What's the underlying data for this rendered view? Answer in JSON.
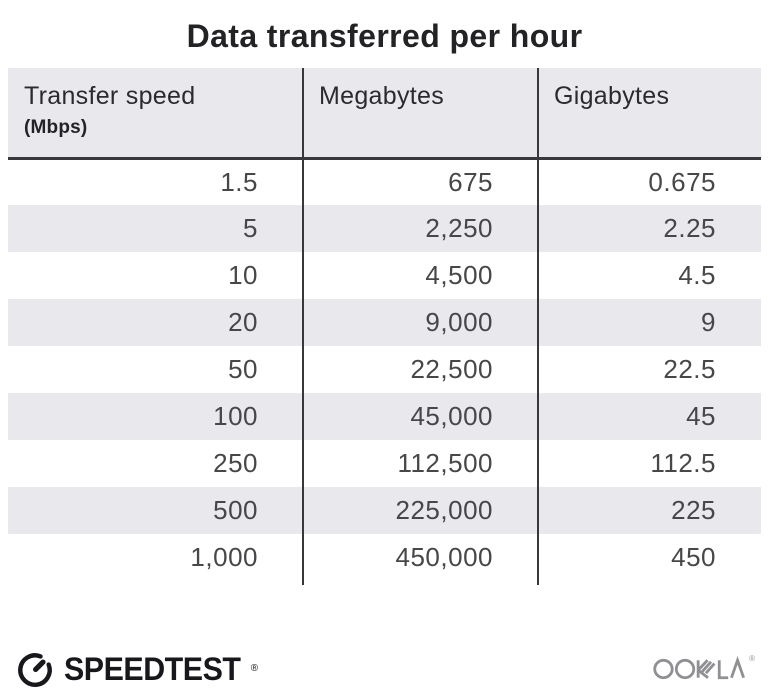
{
  "title": "Data transferred per hour",
  "table": {
    "columns": [
      {
        "label": "Transfer speed",
        "sublabel": "(Mbps)"
      },
      {
        "label": "Megabytes"
      },
      {
        "label": "Gigabytes"
      }
    ],
    "rows": [
      [
        "1.5",
        "675",
        "0.675"
      ],
      [
        "5",
        "2,250",
        "2.25"
      ],
      [
        "10",
        "4,500",
        "4.5"
      ],
      [
        "20",
        "9,000",
        "9"
      ],
      [
        "50",
        "22,500",
        "22.5"
      ],
      [
        "100",
        "45,000",
        "45"
      ],
      [
        "250",
        "112,500",
        "112.5"
      ],
      [
        "500",
        "225,000",
        "225"
      ],
      [
        "1,000",
        "450,000",
        "450"
      ]
    ]
  },
  "footer": {
    "speedtest_label": "SPEEDTEST",
    "speedtest_trademark": "®",
    "ookla_label": "OOKLA",
    "ookla_trademark": "®"
  },
  "colors": {
    "stripe_bg": "#e9e8ec",
    "header_bg": "#e9e8ec",
    "title_text": "#232225",
    "number_text": "#474649",
    "divider": "#38373a",
    "speedtest_dark": "#18171c",
    "ookla_gray": "#908f93"
  },
  "chart_data": {
    "type": "table",
    "title": "Data transferred per hour",
    "columns": [
      "Transfer speed (Mbps)",
      "Megabytes",
      "Gigabytes"
    ],
    "rows": [
      [
        1.5,
        675,
        0.675
      ],
      [
        5,
        2250,
        2.25
      ],
      [
        10,
        4500,
        4.5
      ],
      [
        20,
        9000,
        9
      ],
      [
        50,
        22500,
        22.5
      ],
      [
        100,
        45000,
        45
      ],
      [
        250,
        112500,
        112.5
      ],
      [
        500,
        225000,
        225
      ],
      [
        1000,
        450000,
        450
      ]
    ]
  }
}
